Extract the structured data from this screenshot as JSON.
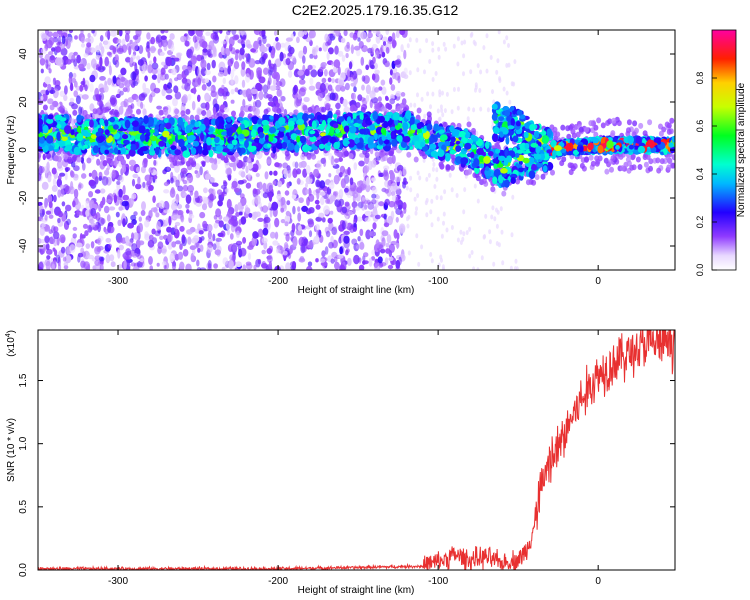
{
  "title": "C2E2.2025.179.16.35.G12",
  "chart_data": [
    {
      "type": "heatmap",
      "xlabel": "Height of straight line (km)",
      "ylabel": "Frequency (Hz)",
      "xlim": [
        -350,
        48
      ],
      "ylim": [
        -50,
        50
      ],
      "x_ticks": [
        -300,
        -200,
        -100,
        0
      ],
      "y_ticks": [
        -40,
        -20,
        0,
        20,
        40
      ],
      "colorbar": {
        "label": "Normalized spectral amplitude",
        "range": [
          0,
          1
        ],
        "ticks": [
          "0.0",
          "0.2",
          "0.4",
          "0.6",
          "0.8"
        ],
        "colormap": "white-violet-blue-cyan-green-yellow-red-magenta"
      },
      "ridge": {
        "description_points": [
          {
            "x": -350,
            "y": 7
          },
          {
            "x": -300,
            "y": 6
          },
          {
            "x": -250,
            "y": 5
          },
          {
            "x": -200,
            "y": 7
          },
          {
            "x": -150,
            "y": 8
          },
          {
            "x": -120,
            "y": 8
          },
          {
            "x": -100,
            "y": 4
          },
          {
            "x": -80,
            "y": 0
          },
          {
            "x": -60,
            "y": -8
          },
          {
            "x": -50,
            "y": -5
          },
          {
            "x": -40,
            "y": -3
          },
          {
            "x": -30,
            "y": 0
          },
          {
            "x": -20,
            "y": 1
          },
          {
            "x": 0,
            "y": 2
          },
          {
            "x": 48,
            "y": 2
          }
        ],
        "branch": [
          {
            "x": -65,
            "y": 12
          },
          {
            "x": -50,
            "y": 10
          },
          {
            "x": -40,
            "y": 4
          },
          {
            "x": -30,
            "y": 1
          }
        ]
      },
      "noise_region_x": [
        -350,
        -120
      ]
    },
    {
      "type": "line",
      "xlabel": "Height of straight line (km)",
      "ylabel": "SNR (10 * v/v)",
      "y_multiplier": "(x10",
      "y_multiplier_exp": "4",
      "y_multiplier_close": ")",
      "xlim": [
        -350,
        48
      ],
      "ylim": [
        0,
        1.9
      ],
      "x_ticks": [
        -300,
        -200,
        -100,
        0
      ],
      "y_ticks": [
        "0.0",
        "0.5",
        "1.0",
        "1.5"
      ],
      "line_color": "#e83030",
      "series": [
        {
          "x": [
            -350,
            -300,
            -250,
            -200,
            -150,
            -110,
            -100,
            -90,
            -80,
            -70,
            -60,
            -50,
            -45,
            -40,
            -35,
            -30,
            -25,
            -20,
            -15,
            -10,
            -5,
            0,
            10,
            20,
            30,
            40,
            48
          ],
          "y": [
            0.01,
            0.01,
            0.01,
            0.01,
            0.02,
            0.03,
            0.06,
            0.12,
            0.08,
            0.1,
            0.05,
            0.08,
            0.15,
            0.35,
            0.7,
            0.85,
            0.95,
            1.1,
            1.25,
            1.35,
            1.45,
            1.55,
            1.65,
            1.72,
            1.78,
            1.8,
            1.8
          ]
        }
      ]
    }
  ]
}
